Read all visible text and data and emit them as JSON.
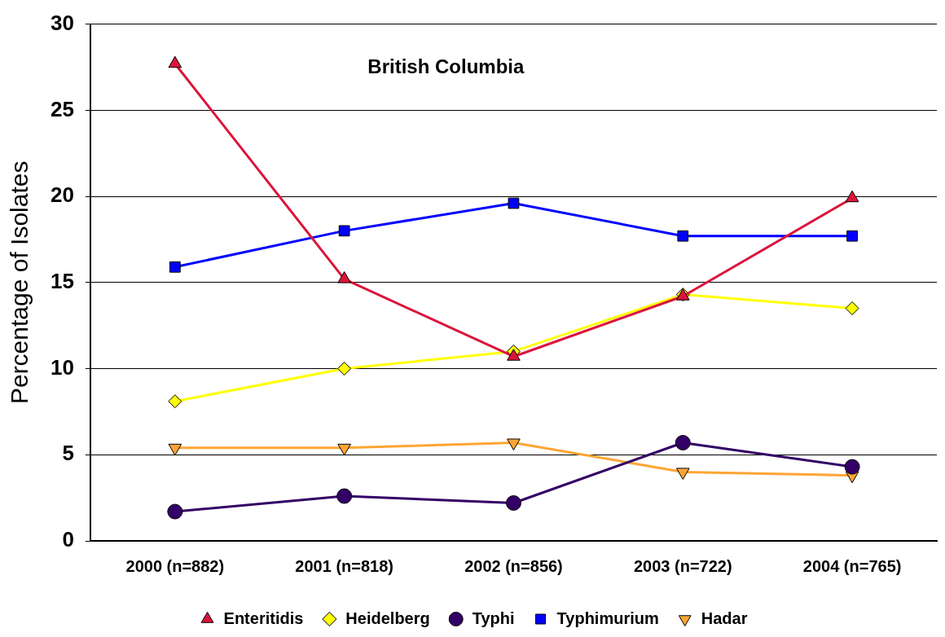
{
  "chart_data": {
    "type": "line",
    "title": "British Columbia",
    "ylabel": "Percentage of Isolates",
    "categories": [
      "2000 (n=882)",
      "2001 (n=818)",
      "2002 (n=856)",
      "2003 (n=722)",
      "2004 (n=765)"
    ],
    "series": [
      {
        "name": "Enteritidis",
        "color": "#dc143c",
        "marker": "triangle",
        "values": [
          27.7,
          15.2,
          10.7,
          14.2,
          19.9
        ]
      },
      {
        "name": "Heidelberg",
        "color": "#ffff00",
        "marker": "diamond",
        "values": [
          8.1,
          10.0,
          11.0,
          14.3,
          13.5
        ]
      },
      {
        "name": "Typhi",
        "color": "#330066",
        "marker": "circle",
        "values": [
          1.7,
          2.6,
          2.2,
          5.7,
          4.3
        ]
      },
      {
        "name": "Typhimurium",
        "color": "#0000ff",
        "marker": "square",
        "values": [
          15.9,
          18.0,
          19.6,
          17.7,
          17.7
        ]
      },
      {
        "name": "Hadar",
        "color": "#ffa533",
        "marker": "triangle-down",
        "values": [
          5.4,
          5.4,
          5.7,
          4.0,
          3.8
        ]
      }
    ],
    "ylim": [
      0,
      30
    ],
    "yticks": [
      0,
      5,
      10,
      15,
      20,
      25,
      30
    ],
    "grid": "y",
    "legend": "bottom",
    "line_style": "solid"
  }
}
